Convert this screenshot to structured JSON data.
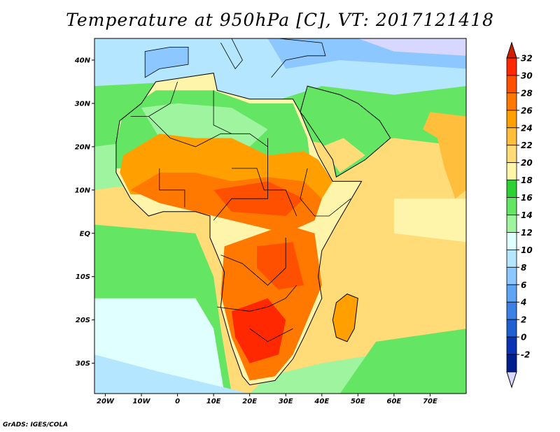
{
  "title": "Temperature at 950hPa [C], VT: 2017121418",
  "footer": "GrADS: IGES/COLA",
  "map": {
    "lon_min": -23,
    "lon_max": 80,
    "lat_min": -37,
    "lat_max": 45,
    "lon_ticks": [
      {
        "value": -20,
        "label": "20W"
      },
      {
        "value": -10,
        "label": "10W"
      },
      {
        "value": 0,
        "label": "0"
      },
      {
        "value": 10,
        "label": "10E"
      },
      {
        "value": 20,
        "label": "20E"
      },
      {
        "value": 30,
        "label": "30E"
      },
      {
        "value": 40,
        "label": "40E"
      },
      {
        "value": 50,
        "label": "50E"
      },
      {
        "value": 60,
        "label": "60E"
      },
      {
        "value": 70,
        "label": "70E"
      }
    ],
    "lat_ticks": [
      {
        "value": 40,
        "label": "40N"
      },
      {
        "value": 30,
        "label": "30N"
      },
      {
        "value": 20,
        "label": "20N"
      },
      {
        "value": 10,
        "label": "10N"
      },
      {
        "value": 0,
        "label": "EQ"
      },
      {
        "value": -10,
        "label": "10S"
      },
      {
        "value": -20,
        "label": "20S"
      },
      {
        "value": -30,
        "label": "30S"
      }
    ]
  },
  "colorbar": {
    "labels": [
      "32",
      "30",
      "28",
      "26",
      "24",
      "22",
      "20",
      "18",
      "16",
      "14",
      "12",
      "10",
      "8",
      "6",
      "4",
      "2",
      "0",
      "-2"
    ],
    "colors": [
      "#ff2800",
      "#ff5000",
      "#ff7800",
      "#ffa000",
      "#ffbe3c",
      "#ffdc78",
      "#fff5aa",
      "#2ed134",
      "#64e664",
      "#9ff59f",
      "#e0ffff",
      "#b4e6ff",
      "#8cc8ff",
      "#5fa5f5",
      "#3c82e6",
      "#1e5fd2",
      "#0a32b4",
      "#001e8c"
    ],
    "top_color": "#d21e00",
    "bottom_color": "#d7d7ff"
  }
}
